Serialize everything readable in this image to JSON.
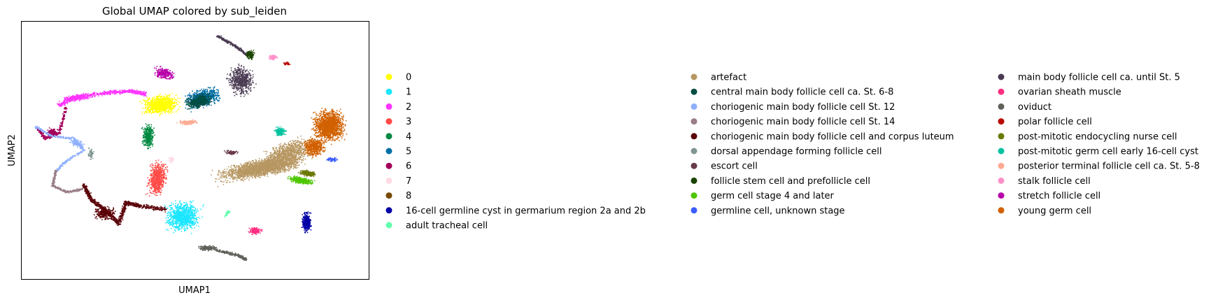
{
  "chart_data": {
    "type": "scatter",
    "title": "Global UMAP colored by sub_leiden",
    "xlabel": "UMAP1",
    "ylabel": "UMAP2",
    "grid": false,
    "ticks": false,
    "legend_placement": "right",
    "legend_columns": 3,
    "categories": [
      {
        "name": "0",
        "color": "#ffff00"
      },
      {
        "name": "1",
        "color": "#1ce6ff"
      },
      {
        "name": "2",
        "color": "#ff34ff"
      },
      {
        "name": "3",
        "color": "#ff4a46"
      },
      {
        "name": "4",
        "color": "#008941"
      },
      {
        "name": "5",
        "color": "#006fa6"
      },
      {
        "name": "6",
        "color": "#a30059"
      },
      {
        "name": "7",
        "color": "#ffdbe5"
      },
      {
        "name": "8",
        "color": "#7a4900"
      },
      {
        "name": "16-cell germline cyst in germarium region 2a and 2b",
        "color": "#0000a6"
      },
      {
        "name": "adult tracheal cell",
        "color": "#63ffac"
      },
      {
        "name": "artefact",
        "color": "#b79762"
      },
      {
        "name": "central main body follicle cell ca. St. 6-8",
        "color": "#004d43"
      },
      {
        "name": "choriogenic main body follicle cell St. 12",
        "color": "#8fb0ff"
      },
      {
        "name": "choriogenic main body follicle cell St. 14",
        "color": "#997d87"
      },
      {
        "name": "choriogenic main body follicle cell and corpus luteum",
        "color": "#5a0007"
      },
      {
        "name": "dorsal appendage forming follicle cell",
        "color": "#809693"
      },
      {
        "name": "escort cell",
        "color": "#6a3a4c"
      },
      {
        "name": "follicle stem cell and prefollicle cell",
        "color": "#1b4400"
      },
      {
        "name": "germ cell stage 4 and later",
        "color": "#4fc601"
      },
      {
        "name": "germline cell, unknown stage",
        "color": "#3b5dff"
      },
      {
        "name": "main body follicle cell ca. until St. 5",
        "color": "#4a3b53"
      },
      {
        "name": "ovarian sheath muscle",
        "color": "#ff2f80"
      },
      {
        "name": "oviduct",
        "color": "#61615a"
      },
      {
        "name": "polar follicle cell",
        "color": "#ba0900"
      },
      {
        "name": "post-mitotic endocycling nurse cell",
        "color": "#6b7900"
      },
      {
        "name": "post-mitotic germ cell early 16-cell cyst",
        "color": "#00c2a0"
      },
      {
        "name": "posterior terminal follicle cell ca. St. 5-8",
        "color": "#ffaa92"
      },
      {
        "name": "stalk follicle cell",
        "color": "#ff90c9"
      },
      {
        "name": "stretch follicle cell",
        "color": "#b903aa"
      },
      {
        "name": "young germ cell",
        "color": "#d16100"
      }
    ]
  }
}
